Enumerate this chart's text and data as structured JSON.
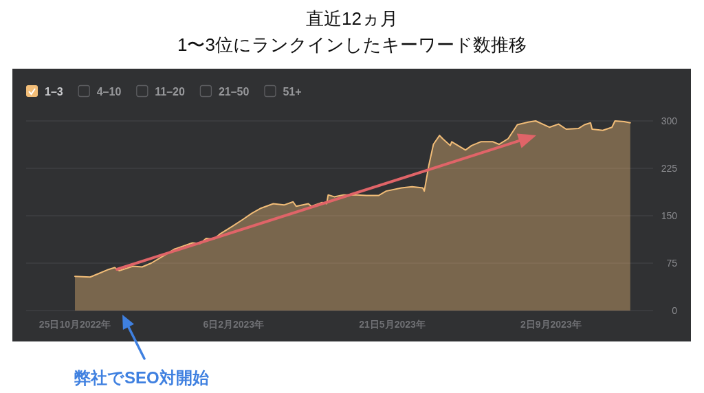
{
  "chart_data": {
    "type": "area",
    "title": "直近12ヵ月",
    "subtitle": "1〜3位にランクインしたキーワード数推移",
    "x": [
      "2022-10-25",
      "2022-11-04",
      "2022-11-10",
      "2022-11-16",
      "2022-11-20",
      "2022-11-23",
      "2022-12-02",
      "2022-12-08",
      "2022-12-14",
      "2022-12-23",
      "2022-12-29",
      "2023-01-04",
      "2023-01-10",
      "2023-01-15",
      "2023-01-19",
      "2023-01-24",
      "2023-01-28",
      "2023-02-05",
      "2023-02-12",
      "2023-02-18",
      "2023-02-24",
      "2023-03-04",
      "2023-03-11",
      "2023-03-17",
      "2023-03-19",
      "2023-03-27",
      "2023-03-29",
      "2023-04-05",
      "2023-04-08",
      "2023-04-09",
      "2023-04-13",
      "2023-04-19",
      "2023-04-28",
      "2023-05-04",
      "2023-05-12",
      "2023-05-17",
      "2023-05-27",
      "2023-06-03",
      "2023-06-10",
      "2023-06-11",
      "2023-06-14",
      "2023-06-17",
      "2023-06-21",
      "2023-06-23",
      "2023-06-28",
      "2023-06-29",
      "2023-07-08",
      "2023-07-12",
      "2023-07-18",
      "2023-07-26",
      "2023-07-30",
      "2023-08-05",
      "2023-08-11",
      "2023-08-18",
      "2023-08-23",
      "2023-09-01",
      "2023-09-07",
      "2023-09-12",
      "2023-09-20",
      "2023-09-24",
      "2023-09-28",
      "2023-09-29",
      "2023-10-06",
      "2023-10-12",
      "2023-10-14",
      "2023-10-20",
      "2023-10-24"
    ],
    "series": [
      {
        "name": "1–3",
        "color": "#f2bd78",
        "values": [
          54,
          53,
          59,
          65,
          68,
          63,
          70,
          69,
          75,
          88,
          97,
          102,
          107,
          106,
          114,
          113,
          121,
          133,
          144,
          154,
          162,
          169,
          167,
          172,
          165,
          169,
          165,
          171,
          169,
          183,
          180,
          183,
          183,
          182,
          182,
          189,
          194,
          196,
          194,
          189,
          230,
          263,
          277,
          272,
          261,
          267,
          254,
          261,
          267,
          267,
          263,
          272,
          294,
          298,
          300,
          290,
          295,
          287,
          288,
          294,
          297,
          287,
          285,
          290,
          300,
          299,
          297
        ]
      },
      {
        "name": "4–10",
        "color": "#5c5d60",
        "values": [
          null,
          null,
          null,
          null,
          null,
          null,
          null,
          null,
          null,
          null,
          null,
          null,
          null,
          null,
          null,
          null,
          null,
          null,
          null,
          null,
          null,
          null,
          null,
          null,
          null,
          null,
          null,
          null,
          null,
          null,
          null,
          null,
          null,
          null,
          null,
          null,
          null,
          null,
          null,
          null,
          null,
          null,
          null,
          null,
          null,
          null,
          null,
          null,
          null,
          null,
          null,
          null,
          null,
          null,
          null,
          null,
          null,
          null,
          null,
          null,
          null,
          null,
          null,
          null,
          null,
          null,
          null
        ]
      },
      {
        "name": "11–20",
        "color": "#5c5d60",
        "values": [
          null,
          null,
          null,
          null,
          null,
          null,
          null,
          null,
          null,
          null,
          null,
          null,
          null,
          null,
          null,
          null,
          null,
          null,
          null,
          null,
          null,
          null,
          null,
          null,
          null,
          null,
          null,
          null,
          null,
          null,
          null,
          null,
          null,
          null,
          null,
          null,
          null,
          null,
          null,
          null,
          null,
          null,
          null,
          null,
          null,
          null,
          null,
          null,
          null,
          null,
          null,
          null,
          null,
          null,
          null,
          null,
          null,
          null,
          null,
          null,
          null,
          null,
          null,
          null,
          null,
          null,
          null
        ]
      },
      {
        "name": "21–50",
        "color": "#5c5d60",
        "values": [
          null,
          null,
          null,
          null,
          null,
          null,
          null,
          null,
          null,
          null,
          null,
          null,
          null,
          null,
          null,
          null,
          null,
          null,
          null,
          null,
          null,
          null,
          null,
          null,
          null,
          null,
          null,
          null,
          null,
          null,
          null,
          null,
          null,
          null,
          null,
          null,
          null,
          null,
          null,
          null,
          null,
          null,
          null,
          null,
          null,
          null,
          null,
          null,
          null,
          null,
          null,
          null,
          null,
          null,
          null,
          null,
          null,
          null,
          null,
          null,
          null,
          null,
          null,
          null,
          null,
          null,
          null
        ]
      },
      {
        "name": "51+",
        "color": "#5c5d60",
        "values": [
          null,
          null,
          null,
          null,
          null,
          null,
          null,
          null,
          null,
          null,
          null,
          null,
          null,
          null,
          null,
          null,
          null,
          null,
          null,
          null,
          null,
          null,
          null,
          null,
          null,
          null,
          null,
          null,
          null,
          null,
          null,
          null,
          null,
          null,
          null,
          null,
          null,
          null,
          null,
          null,
          null,
          null,
          null,
          null,
          null,
          null,
          null,
          null,
          null,
          null,
          null,
          null,
          null,
          null,
          null,
          null,
          null,
          null,
          null,
          null,
          null,
          null,
          null,
          null,
          null,
          null,
          null
        ]
      }
    ],
    "xlim": [
      "2022-09-23",
      "2023-11-08"
    ],
    "xticks": [
      {
        "value": "2022-10-25",
        "label": "25日10月2022年"
      },
      {
        "value": "2023-02-06",
        "label": "6日2月2023年"
      },
      {
        "value": "2023-05-21",
        "label": "21日5月2023年"
      },
      {
        "value": "2023-09-02",
        "label": "2日9月2023年"
      }
    ],
    "ylim": [
      0,
      300
    ],
    "yticks": [
      0,
      75,
      150,
      225,
      300
    ],
    "grid": "y",
    "legend": "top left",
    "annotations": [
      "弊社でSEO対開始"
    ]
  }
}
